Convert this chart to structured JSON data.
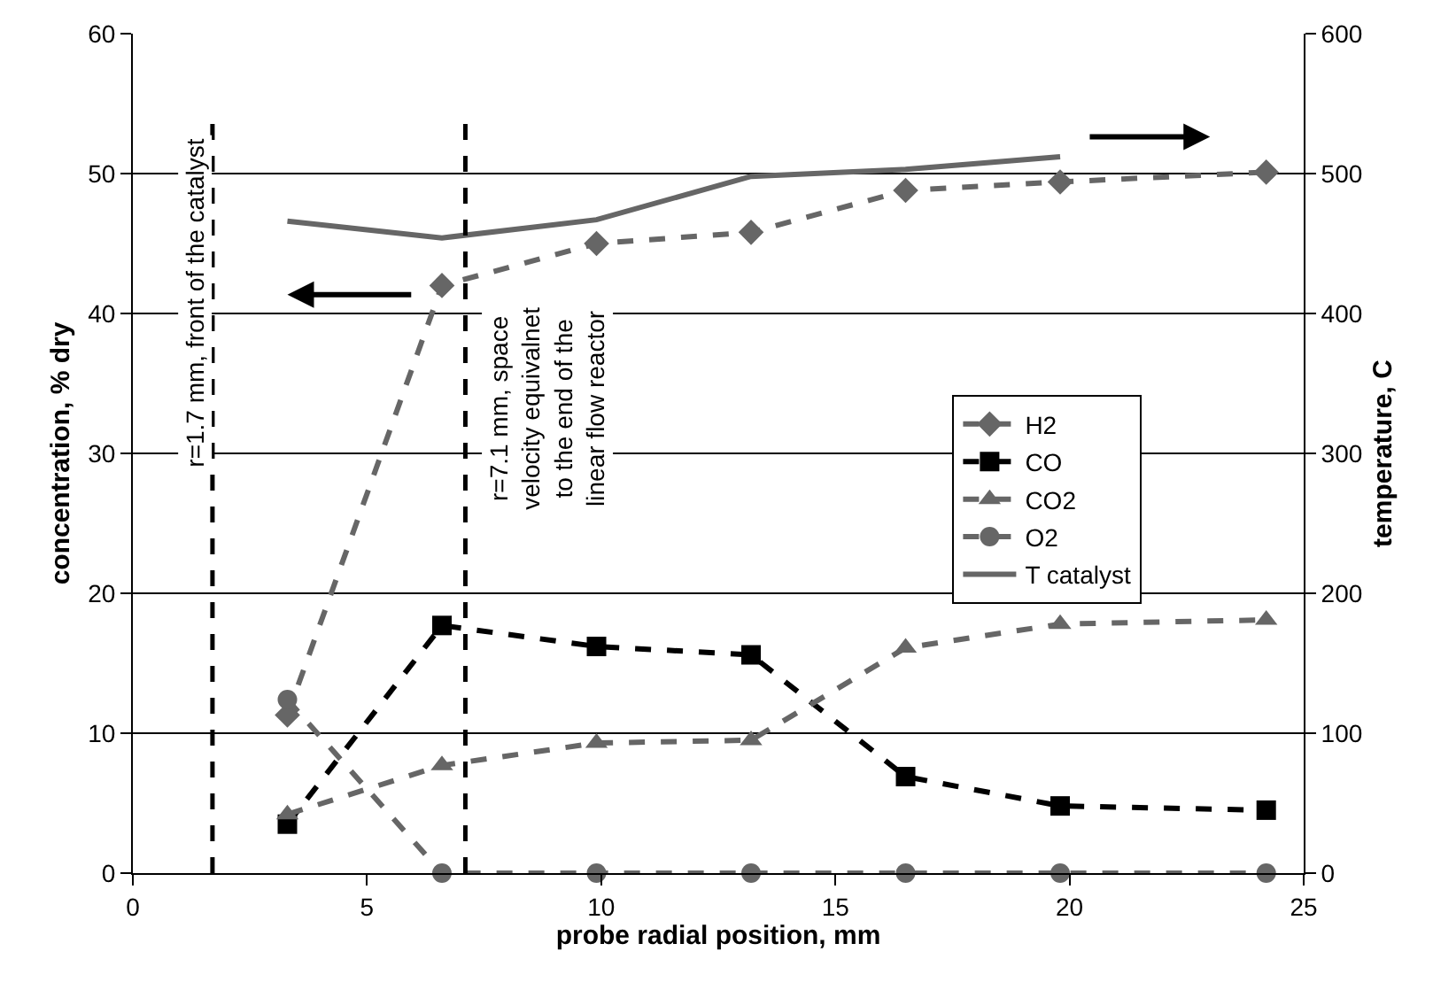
{
  "chart_data": {
    "type": "line",
    "xlabel": "probe radial position, mm",
    "ylabel": "concentration, % dry",
    "y2label": "temperature, C",
    "x": [
      3.3,
      6.6,
      9.9,
      13.2,
      16.5,
      19.8,
      24.2
    ],
    "series": [
      {
        "name": "H2",
        "color": "#666666",
        "marker": "diamond",
        "line_style": "dashed",
        "values": [
          11.3,
          42.0,
          45.0,
          45.8,
          48.8,
          49.4,
          50.1
        ]
      },
      {
        "name": "CO",
        "color": "#000000",
        "marker": "square",
        "line_style": "dashed",
        "values": [
          3.5,
          17.7,
          16.2,
          15.6,
          6.9,
          4.8,
          4.5
        ]
      },
      {
        "name": "CO2",
        "color": "#666666",
        "marker": "triangle",
        "line_style": "dashed",
        "values": [
          4.2,
          7.7,
          9.3,
          9.5,
          16.1,
          17.8,
          18.1
        ]
      },
      {
        "name": "O2",
        "color": "#666666",
        "marker": "circle",
        "line_style": "dashed",
        "values": [
          12.4,
          0,
          0,
          0,
          0,
          0,
          0
        ]
      },
      {
        "name": "T catalyst",
        "color": "#666666",
        "marker": "none",
        "line_style": "solid",
        "axis": "y2",
        "x": [
          3.3,
          6.6,
          9.9,
          13.2,
          16.5,
          19.8
        ],
        "values": [
          466,
          454,
          467,
          498,
          503,
          512
        ]
      }
    ],
    "xlim": [
      0,
      25
    ],
    "xticks": [
      0,
      5,
      10,
      15,
      20,
      25
    ],
    "ylim": [
      0,
      60
    ],
    "yticks": [
      0,
      10,
      20,
      30,
      40,
      50,
      60
    ],
    "y2lim": [
      0,
      600
    ],
    "y2ticks": [
      0,
      100,
      200,
      300,
      400,
      500,
      600
    ],
    "ref_lines": [
      {
        "axis": "x",
        "value": 1.7,
        "label": "r=1.7 mm, front of the catalyst",
        "color": "#000000",
        "line_style": "dashed"
      },
      {
        "axis": "x",
        "value": 7.1,
        "label": "r=7.1 mm, space\nvelocity equivalnet\nto the end of the\nlinear flow reactor",
        "color": "#000000",
        "line_style": "dashed"
      }
    ],
    "grid": "y",
    "legend": "right"
  }
}
